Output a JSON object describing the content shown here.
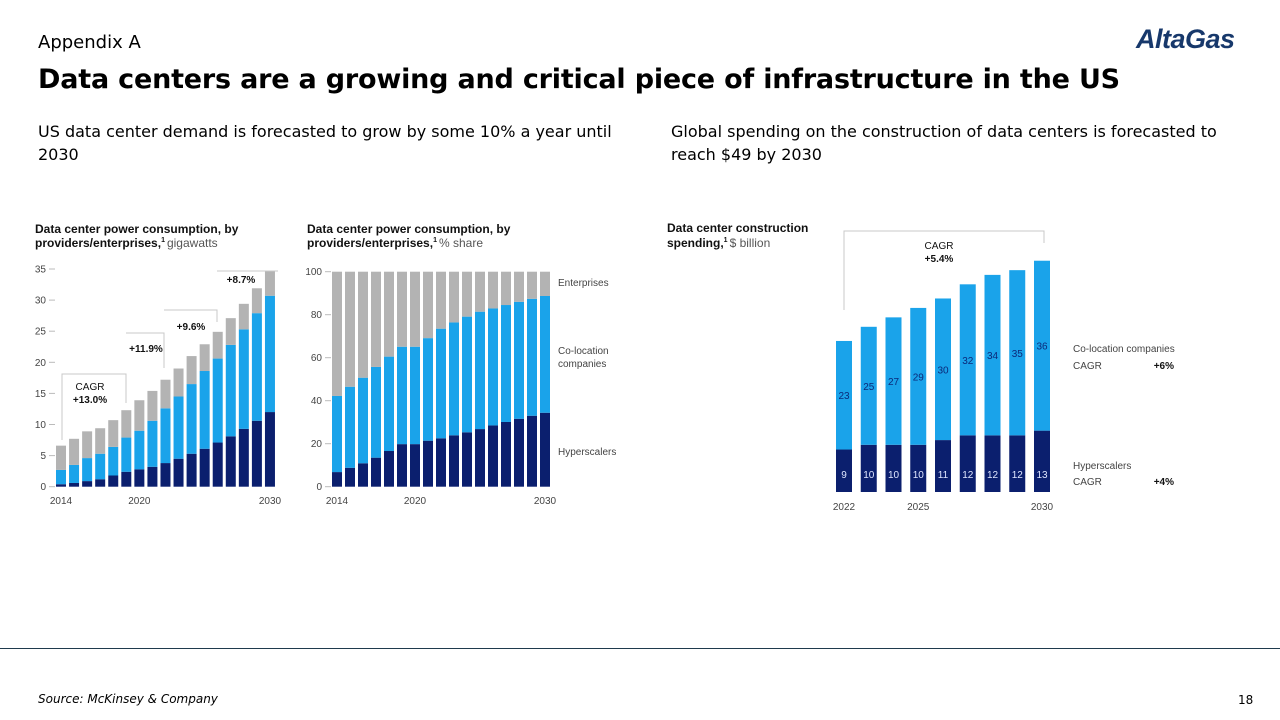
{
  "header": {
    "section": "Appendix A",
    "title": "Data centers are a growing and critical piece of infrastructure in the US",
    "logo": "AltaGas"
  },
  "subtitles": {
    "left": "US data center demand is forecasted to grow by some 10% a year until 2030",
    "right": "Global spending on the construction of data centers is forecasted to reach $49 by 2030"
  },
  "footer": {
    "source": "Source: McKinsey & Company",
    "page": "18"
  },
  "colors": {
    "hyperscalers": "#0b1f6e",
    "colocation": "#1aa3ea",
    "enterprises": "#b3b3b3",
    "divider": "#1f3a4d",
    "logo": "#17386b"
  },
  "chart_data": [
    {
      "type": "bar",
      "stacked": true,
      "title": "Data center power consumption, by providers/enterprises,",
      "title_line1": "Data center power consumption, by",
      "title_line2": "providers/enterprises,",
      "footnote": "1",
      "unit": "gigawatts",
      "x": [
        2014,
        2015,
        2016,
        2017,
        2018,
        2019,
        2020,
        2021,
        2022,
        2023,
        2024,
        2025,
        2026,
        2027,
        2028,
        2029,
        2030
      ],
      "xtick_labels": [
        "2014",
        "2020",
        "2030"
      ],
      "ylim": [
        0,
        35
      ],
      "yticks": [
        "0",
        "5",
        "10",
        "15",
        "20",
        "25",
        "30",
        "35"
      ],
      "grid": false,
      "series": [
        {
          "key": "hyperscalers",
          "values": [
            0.4,
            0.6,
            0.9,
            1.2,
            1.8,
            2.4,
            2.8,
            3.2,
            3.8,
            4.5,
            5.3,
            6.1,
            7.1,
            8.1,
            9.3,
            10.6,
            12.0
          ]
        },
        {
          "key": "colocation",
          "values": [
            2.3,
            2.9,
            3.7,
            4.1,
            4.6,
            5.5,
            6.2,
            7.4,
            8.8,
            10.0,
            11.2,
            12.5,
            13.5,
            14.7,
            16.0,
            17.3,
            18.7
          ]
        },
        {
          "key": "enterprises",
          "values": [
            3.9,
            4.2,
            4.3,
            4.1,
            4.3,
            4.4,
            4.9,
            4.8,
            4.6,
            4.5,
            4.5,
            4.3,
            4.3,
            4.3,
            4.1,
            4.0,
            4.0
          ]
        }
      ],
      "annotations": {
        "cagr_label": "CAGR",
        "cagr": [
          "+13.0%",
          "+11.9%",
          "+9.6%",
          "+8.7%"
        ]
      }
    },
    {
      "type": "bar",
      "stacked": true,
      "title_line1": "Data center power consumption, by",
      "title_line2": "providers/enterprises,",
      "footnote": "1",
      "unit": "% share",
      "x": [
        2014,
        2015,
        2016,
        2017,
        2018,
        2019,
        2020,
        2021,
        2022,
        2023,
        2024,
        2025,
        2026,
        2027,
        2028,
        2029,
        2030
      ],
      "xtick_labels": [
        "2014",
        "2020",
        "2030"
      ],
      "ylim": [
        0,
        100
      ],
      "yticks": [
        "0",
        "20",
        "40",
        "60",
        "80",
        "100"
      ],
      "grid": false,
      "legend": {
        "enterprises": "Enterprises",
        "colocation_1": "Co-location",
        "colocation_2": "companies",
        "hyperscalers": "Hyperscalers"
      },
      "legend_placement": "right",
      "series": [
        {
          "key": "hyperscalers",
          "name": "Hyperscalers",
          "values": [
            6.8,
            8.8,
            10.9,
            13.5,
            16.6,
            19.8,
            19.8,
            21.4,
            22.5,
            23.9,
            25.3,
            26.8,
            28.5,
            30.1,
            31.6,
            33.0,
            34.4
          ]
        },
        {
          "key": "colocation",
          "name": "Co-location companies",
          "values": [
            35.4,
            37.7,
            39.8,
            42.2,
            43.9,
            45.3,
            45.3,
            47.7,
            51.0,
            52.5,
            53.8,
            54.6,
            54.4,
            54.4,
            54.4,
            54.4,
            54.3
          ]
        },
        {
          "key": "enterprises",
          "name": "Enterprises",
          "values": [
            57.8,
            53.5,
            49.3,
            44.3,
            39.5,
            34.9,
            34.9,
            30.9,
            26.5,
            23.6,
            20.9,
            18.6,
            17.1,
            15.5,
            14.0,
            12.6,
            11.3
          ]
        }
      ]
    },
    {
      "type": "bar",
      "stacked": true,
      "title_line1": "Data center construction",
      "title_line2": "spending,",
      "footnote": "1",
      "unit": "$ billion",
      "x": [
        2022,
        2023,
        2024,
        2025,
        2026,
        2027,
        2028,
        2029,
        2030
      ],
      "xtick_labels": [
        "2022",
        "2025",
        "2030"
      ],
      "grid": false,
      "series": [
        {
          "key": "hyperscalers",
          "name": "Hyperscalers",
          "values": [
            9,
            10,
            10,
            10,
            11,
            12,
            12,
            12,
            13
          ],
          "labels": [
            "9",
            "10",
            "10",
            "10",
            "11",
            "12",
            "12",
            "12",
            "13"
          ]
        },
        {
          "key": "colocation",
          "name": "Co-location companies",
          "values": [
            23,
            25,
            27,
            29,
            30,
            32,
            34,
            35,
            36
          ],
          "labels": [
            "23",
            "25",
            "27",
            "29",
            "30",
            "32",
            "34",
            "35",
            "36"
          ]
        }
      ],
      "legend": {
        "colocation": "Co-location companies",
        "colocation_cagr_label": "CAGR",
        "colocation_cagr": "+6%",
        "hyperscalers": "Hyperscalers",
        "hyperscalers_cagr_label": "CAGR",
        "hyperscalers_cagr": "+4%"
      },
      "legend_placement": "right",
      "annotations": {
        "cagr_label": "CAGR",
        "cagr": "+5.4%"
      }
    }
  ]
}
